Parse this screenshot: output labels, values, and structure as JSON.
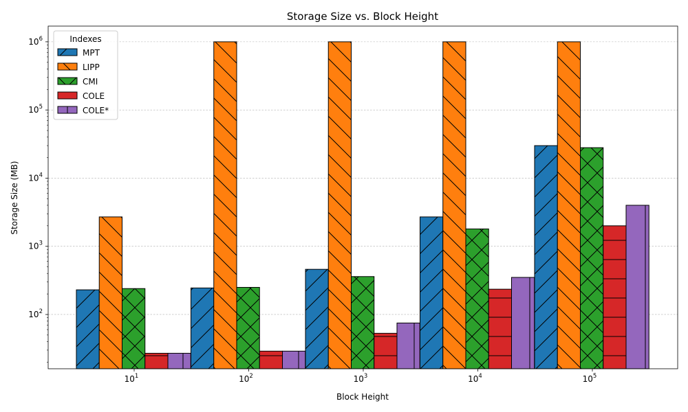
{
  "chart_data": {
    "type": "bar",
    "title": "Storage Size vs. Block Height",
    "xlabel": "Block Height",
    "ylabel": "Storage Size (MB)",
    "y_scale": "log",
    "ylim": [
      16,
      1700000
    ],
    "grid": "y-major dashed",
    "categories": [
      "10^1",
      "10^2",
      "10^3",
      "10^4",
      "10^5"
    ],
    "x_ticks": [
      {
        "base": "10",
        "exp": "1"
      },
      {
        "base": "10",
        "exp": "2"
      },
      {
        "base": "10",
        "exp": "3"
      },
      {
        "base": "10",
        "exp": "4"
      },
      {
        "base": "10",
        "exp": "5"
      }
    ],
    "y_ticks": [
      {
        "base": "10",
        "exp": "2",
        "value": 100
      },
      {
        "base": "10",
        "exp": "3",
        "value": 1000
      },
      {
        "base": "10",
        "exp": "4",
        "value": 10000
      },
      {
        "base": "10",
        "exp": "5",
        "value": 100000
      },
      {
        "base": "10",
        "exp": "6",
        "value": 1000000
      }
    ],
    "legend": {
      "title": "Indexes",
      "position": "top-left"
    },
    "series": [
      {
        "name": "MPT",
        "color": "#1f77b4",
        "hatch": "/",
        "values": [
          230,
          245,
          460,
          2700,
          30000
        ]
      },
      {
        "name": "LIPP",
        "color": "#ff7f0e",
        "hatch": "\\",
        "values": [
          2700,
          1000000,
          1000000,
          1000000,
          1000000
        ]
      },
      {
        "name": "CMI",
        "color": "#2ca02c",
        "hatch": "x",
        "values": [
          240,
          250,
          360,
          1800,
          28000
        ]
      },
      {
        "name": "COLE",
        "color": "#d62728",
        "hatch": "-",
        "values": [
          27,
          29,
          53,
          235,
          2000
        ]
      },
      {
        "name": "COLE*",
        "color": "#9467bd",
        "hatch": "|",
        "values": [
          27,
          29,
          75,
          350,
          4000
        ]
      }
    ]
  }
}
